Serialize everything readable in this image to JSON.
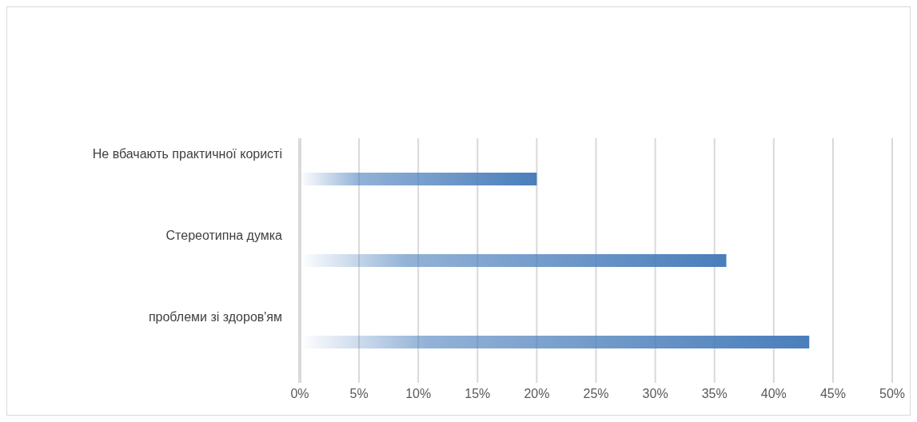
{
  "chart_data": {
    "type": "bar",
    "orientation": "horizontal",
    "categories": [
      "Не вбачають практичної користі",
      "Стереотипна думка",
      "проблеми зі здоров'ям"
    ],
    "values": [
      20,
      36,
      43
    ],
    "color": "#4a7ebb",
    "xlim": [
      0,
      50
    ],
    "xticks": [
      {
        "value": 0,
        "label": "0%"
      },
      {
        "value": 5,
        "label": "5%"
      },
      {
        "value": 10,
        "label": "10%"
      },
      {
        "value": 15,
        "label": "15%"
      },
      {
        "value": 20,
        "label": "20%"
      },
      {
        "value": 25,
        "label": "25%"
      },
      {
        "value": 30,
        "label": "30%"
      },
      {
        "value": 35,
        "label": "35%"
      },
      {
        "value": 40,
        "label": "40%"
      },
      {
        "value": 45,
        "label": "45%"
      },
      {
        "value": 50,
        "label": "50%"
      }
    ],
    "grid": "x"
  }
}
